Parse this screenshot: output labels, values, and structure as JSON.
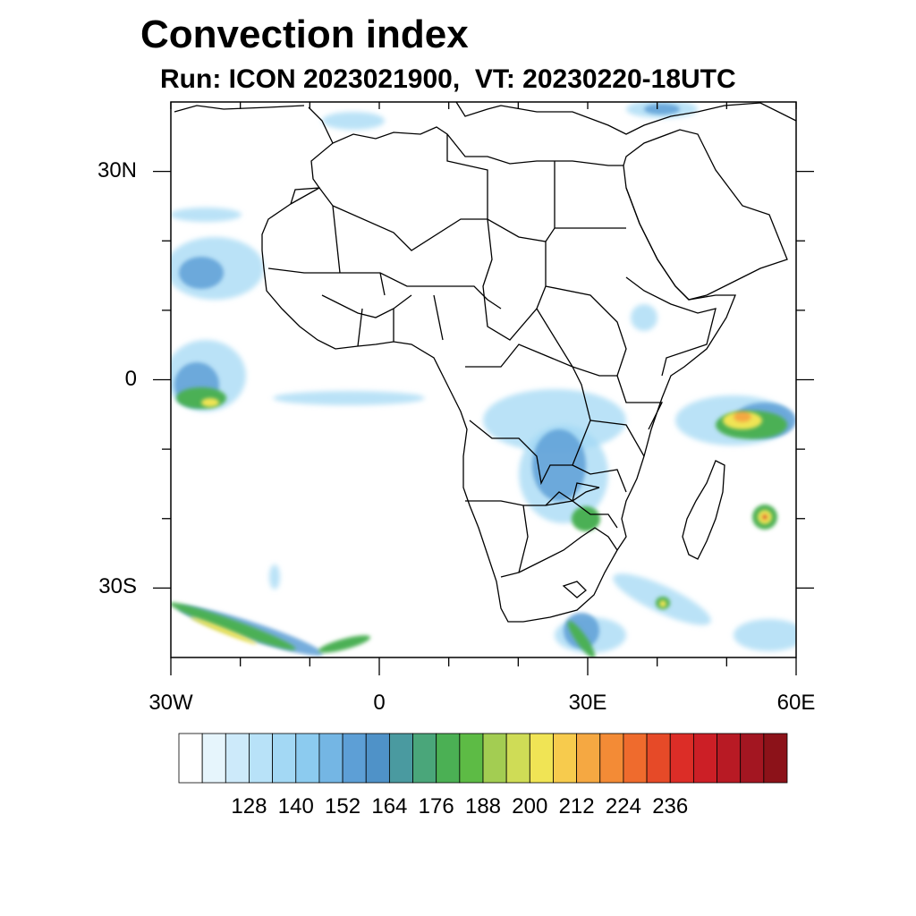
{
  "title": "Convection index",
  "subtitle": "Run: ICON 2023021900,  VT: 20230220-18UTC",
  "map": {
    "projection": "cylindrical equidistant",
    "lon_range": [
      -30,
      60
    ],
    "lat_range": [
      -40,
      40
    ],
    "lat_ticks": [
      {
        "lat": 30,
        "label": "30N"
      },
      {
        "lat": 0,
        "label": "0"
      },
      {
        "lat": -30,
        "label": "30S"
      }
    ],
    "lon_ticks": [
      {
        "lon": -30,
        "label": "30W"
      },
      {
        "lon": 0,
        "label": "0"
      },
      {
        "lon": 30,
        "label": "30E"
      },
      {
        "lon": 60,
        "label": "60E"
      }
    ],
    "field_notes": "Convective cloud field: Atlantic ITCZ, central/southern Africa, tropical cyclones east of Madagascar"
  },
  "colorbar": {
    "labels": [
      "128",
      "140",
      "152",
      "164",
      "176",
      "188",
      "200",
      "212",
      "224",
      "236"
    ],
    "colors": [
      "#ffffff",
      "#e6f5fc",
      "#cdeafa",
      "#b8e2f8",
      "#a3d8f4",
      "#8ccbef",
      "#74b6e4",
      "#5d9fd6",
      "#4f92c8",
      "#4a9aa0",
      "#4aa67a",
      "#4bb054",
      "#5dbb45",
      "#a3cd52",
      "#cfdc56",
      "#f0e455",
      "#f7cb4d",
      "#f5a842",
      "#f38b36",
      "#ef6b2d",
      "#e64a28",
      "#dc2d27",
      "#cc1f26",
      "#b81a24",
      "#a31621",
      "#8c1219"
    ]
  },
  "style": {
    "lowColor": "#a3d8f4",
    "midColor": "#5d9fd6",
    "greenColor": "#4bb054",
    "yellowColor": "#f0e455",
    "orangeColor": "#f5a842",
    "redColor": "#dc2d27"
  }
}
